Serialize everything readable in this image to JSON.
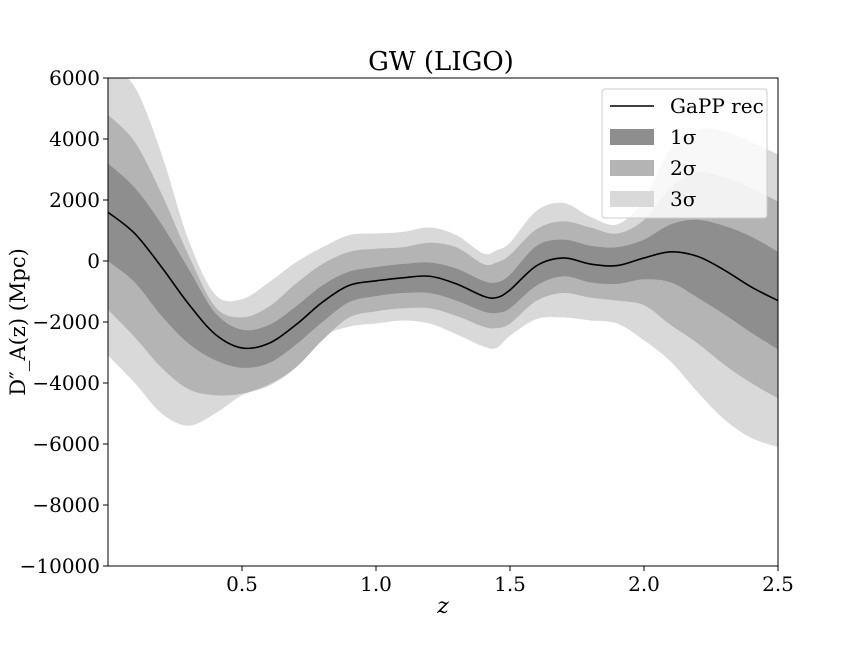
{
  "chart_data": {
    "type": "line",
    "title": "GW (LIGO)",
    "xlabel": "z",
    "ylabel": "D″_A(z) (Mpc)",
    "xlim": [
      0.0,
      2.5
    ],
    "ylim": [
      -10000,
      6000
    ],
    "xticks": [
      0.5,
      1.0,
      1.5,
      2.0,
      2.5
    ],
    "xtick_labels": [
      "0.5",
      "1.0",
      "1.5",
      "2.0",
      "2.5"
    ],
    "yticks": [
      6000,
      4000,
      2000,
      0,
      -2000,
      -4000,
      -6000,
      -8000,
      -10000
    ],
    "ytick_labels": [
      "6000",
      "4000",
      "2000",
      "0",
      "−2000",
      "−4000",
      "−6000",
      "−8000",
      "−10000"
    ],
    "grid": false,
    "legend_position": "top-right",
    "series": [
      {
        "name": "GaPP rec",
        "kind": "line",
        "color": "#000000",
        "x": [
          0.0,
          0.1,
          0.2,
          0.3,
          0.4,
          0.5,
          0.6,
          0.7,
          0.8,
          0.9,
          1.0,
          1.1,
          1.2,
          1.3,
          1.4,
          1.45,
          1.5,
          1.6,
          1.7,
          1.8,
          1.9,
          2.0,
          2.1,
          2.2,
          2.3,
          2.4,
          2.5
        ],
        "y": [
          1600,
          900,
          -200,
          -1400,
          -2400,
          -2850,
          -2700,
          -2100,
          -1350,
          -800,
          -650,
          -550,
          -500,
          -750,
          -1150,
          -1200,
          -950,
          -150,
          100,
          -100,
          -150,
          100,
          300,
          150,
          -300,
          -850,
          -1300
        ]
      }
    ],
    "bands": [
      {
        "name": "3σ",
        "color": "#d9d9d9",
        "x": [
          0.0,
          0.1,
          0.2,
          0.3,
          0.4,
          0.5,
          0.6,
          0.7,
          0.8,
          0.9,
          1.0,
          1.1,
          1.2,
          1.3,
          1.4,
          1.45,
          1.5,
          1.6,
          1.7,
          1.8,
          1.9,
          2.0,
          2.1,
          2.2,
          2.3,
          2.4,
          2.5
        ],
        "upper": [
          6400,
          5700,
          3500,
          700,
          -1100,
          -1250,
          -700,
          -50,
          450,
          850,
          900,
          950,
          1100,
          850,
          250,
          350,
          600,
          1650,
          1900,
          1450,
          1200,
          2000,
          3700,
          4300,
          4250,
          3900,
          3500
        ],
        "lower": [
          -3100,
          -4000,
          -5000,
          -5400,
          -5000,
          -4400,
          -4100,
          -3500,
          -2500,
          -2150,
          -2050,
          -1950,
          -2050,
          -2400,
          -2800,
          -2850,
          -2450,
          -1900,
          -1850,
          -1950,
          -2050,
          -2600,
          -3300,
          -4300,
          -5200,
          -5800,
          -6100
        ]
      },
      {
        "name": "2σ",
        "color": "#b4b4b4",
        "x": [
          0.0,
          0.1,
          0.2,
          0.3,
          0.4,
          0.5,
          0.6,
          0.7,
          0.8,
          0.9,
          1.0,
          1.1,
          1.2,
          1.3,
          1.4,
          1.45,
          1.5,
          1.6,
          1.7,
          1.8,
          1.9,
          2.0,
          2.1,
          2.2,
          2.3,
          2.4,
          2.5
        ],
        "upper": [
          4800,
          3900,
          2200,
          200,
          -1500,
          -1850,
          -1500,
          -750,
          -100,
          300,
          400,
          450,
          600,
          450,
          -100,
          -50,
          200,
          1050,
          1300,
          1100,
          900,
          1350,
          2400,
          2900,
          2750,
          2400,
          1950
        ],
        "lower": [
          -1600,
          -2500,
          -3500,
          -4200,
          -4400,
          -4350,
          -4050,
          -3500,
          -2600,
          -1850,
          -1650,
          -1550,
          -1550,
          -1800,
          -2150,
          -2200,
          -2050,
          -1300,
          -1050,
          -1200,
          -1300,
          -1450,
          -2100,
          -2700,
          -3400,
          -4000,
          -4500
        ]
      },
      {
        "name": "1σ",
        "color": "#8e8e8e",
        "x": [
          0.0,
          0.1,
          0.2,
          0.3,
          0.4,
          0.5,
          0.6,
          0.7,
          0.8,
          0.9,
          1.0,
          1.1,
          1.2,
          1.3,
          1.4,
          1.45,
          1.5,
          1.6,
          1.7,
          1.8,
          1.9,
          2.0,
          2.1,
          2.2,
          2.3,
          2.4,
          2.5
        ],
        "upper": [
          3200,
          2400,
          1200,
          -250,
          -1700,
          -2250,
          -2100,
          -1500,
          -800,
          -350,
          -200,
          -100,
          -50,
          -250,
          -650,
          -700,
          -450,
          500,
          700,
          500,
          450,
          700,
          1200,
          1350,
          1150,
          800,
          300
        ],
        "lower": [
          0,
          -700,
          -1800,
          -2700,
          -3250,
          -3500,
          -3350,
          -2750,
          -2000,
          -1350,
          -1150,
          -1050,
          -1050,
          -1300,
          -1650,
          -1700,
          -1550,
          -800,
          -500,
          -700,
          -750,
          -600,
          -700,
          -1200,
          -1750,
          -2350,
          -2900
        ]
      }
    ],
    "legend": [
      {
        "label": "GaPP rec",
        "kind": "line",
        "color": "#000000"
      },
      {
        "label": "1σ",
        "kind": "patch",
        "color": "#8e8e8e"
      },
      {
        "label": "2σ",
        "kind": "patch",
        "color": "#b4b4b4"
      },
      {
        "label": "3σ",
        "kind": "patch",
        "color": "#d9d9d9"
      }
    ]
  }
}
